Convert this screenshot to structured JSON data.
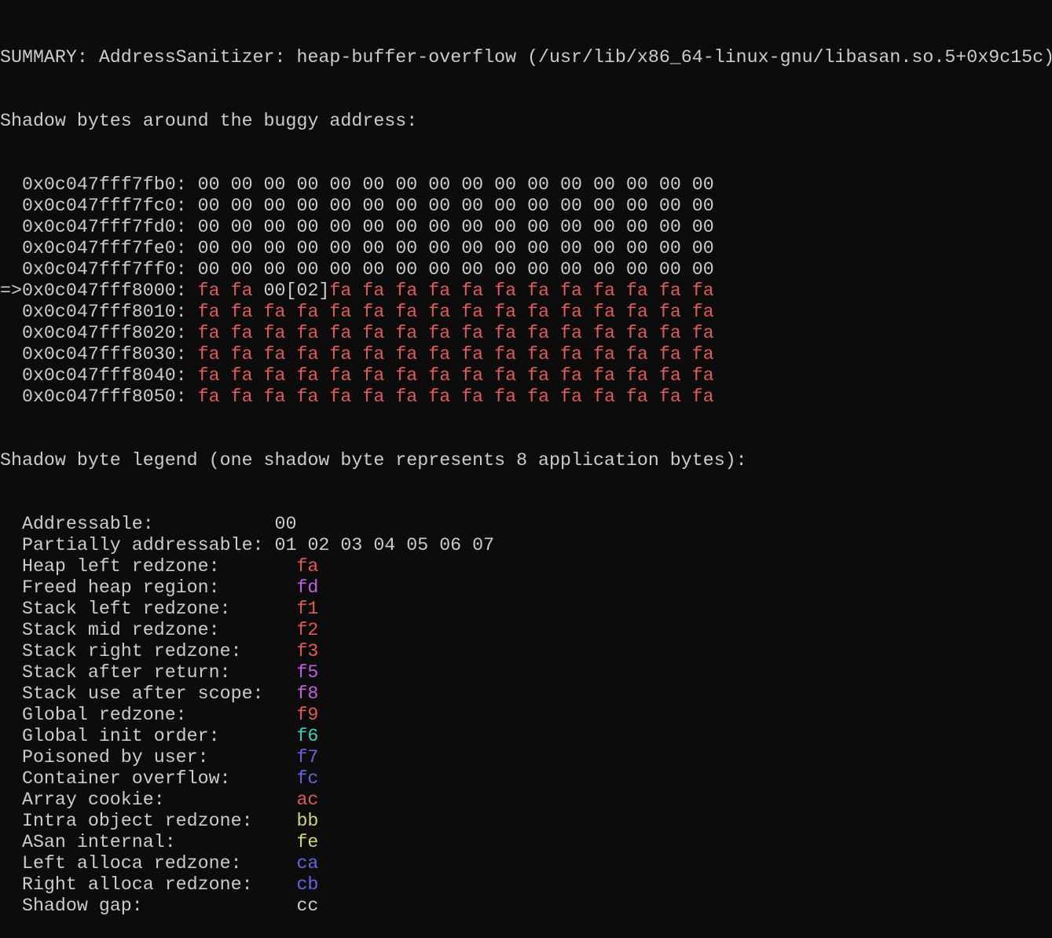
{
  "terminal": {
    "summary": "SUMMARY: AddressSanitizer: heap-buffer-overflow (/usr/lib/x86_64-linux-gnu/libasan.so.5+0x9c15c)",
    "shadow_header": "Shadow bytes around the buggy address:",
    "colors": {
      "fg": "#cccccc",
      "red": "#e05a5a",
      "magenta": "#c060e0",
      "cyan": "#3ad0b8",
      "blue": "#6464e0",
      "yellow": "#d4d470",
      "gray": "#cccccc"
    },
    "rows": [
      {
        "prefix": "  ",
        "address": "0x0c047fff7fb0:",
        "segments": [
          {
            "text": " 00 00 00 00 00 00 00 00 00 00 00 00 00 00 00 00",
            "color": "fg"
          }
        ]
      },
      {
        "prefix": "  ",
        "address": "0x0c047fff7fc0:",
        "segments": [
          {
            "text": " 00 00 00 00 00 00 00 00 00 00 00 00 00 00 00 00",
            "color": "fg"
          }
        ]
      },
      {
        "prefix": "  ",
        "address": "0x0c047fff7fd0:",
        "segments": [
          {
            "text": " 00 00 00 00 00 00 00 00 00 00 00 00 00 00 00 00",
            "color": "fg"
          }
        ]
      },
      {
        "prefix": "  ",
        "address": "0x0c047fff7fe0:",
        "segments": [
          {
            "text": " 00 00 00 00 00 00 00 00 00 00 00 00 00 00 00 00",
            "color": "fg"
          }
        ]
      },
      {
        "prefix": "  ",
        "address": "0x0c047fff7ff0:",
        "segments": [
          {
            "text": " 00 00 00 00 00 00 00 00 00 00 00 00 00 00 00 00",
            "color": "fg"
          }
        ]
      },
      {
        "prefix": "=>",
        "address": "0x0c047fff8000:",
        "segments": [
          {
            "text": " ",
            "color": "fg"
          },
          {
            "text": "fa fa",
            "color": "red"
          },
          {
            "text": " 00[02]",
            "color": "fg"
          },
          {
            "text": "fa fa fa fa fa fa fa fa fa fa fa fa",
            "color": "red"
          }
        ]
      },
      {
        "prefix": "  ",
        "address": "0x0c047fff8010:",
        "segments": [
          {
            "text": " ",
            "color": "fg"
          },
          {
            "text": "fa fa fa fa fa fa fa fa fa fa fa fa fa fa fa fa",
            "color": "red"
          }
        ]
      },
      {
        "prefix": "  ",
        "address": "0x0c047fff8020:",
        "segments": [
          {
            "text": " ",
            "color": "fg"
          },
          {
            "text": "fa fa fa fa fa fa fa fa fa fa fa fa fa fa fa fa",
            "color": "red"
          }
        ]
      },
      {
        "prefix": "  ",
        "address": "0x0c047fff8030:",
        "segments": [
          {
            "text": " ",
            "color": "fg"
          },
          {
            "text": "fa fa fa fa fa fa fa fa fa fa fa fa fa fa fa fa",
            "color": "red"
          }
        ]
      },
      {
        "prefix": "  ",
        "address": "0x0c047fff8040:",
        "segments": [
          {
            "text": " ",
            "color": "fg"
          },
          {
            "text": "fa fa fa fa fa fa fa fa fa fa fa fa fa fa fa fa",
            "color": "red"
          }
        ]
      },
      {
        "prefix": "  ",
        "address": "0x0c047fff8050:",
        "segments": [
          {
            "text": " ",
            "color": "fg"
          },
          {
            "text": "fa fa fa fa fa fa fa fa fa fa fa fa fa fa fa fa",
            "color": "red"
          }
        ]
      }
    ],
    "legend_header": "Shadow byte legend (one shadow byte represents 8 application bytes):",
    "legend": [
      {
        "label": "  Addressable:",
        "value": "00",
        "color": "fg",
        "pad": false
      },
      {
        "label": "  Partially addressable:",
        "value": "01 02 03 04 05 06 07",
        "color": "fg",
        "pad": false
      },
      {
        "label": "  Heap left redzone:",
        "value": "fa",
        "color": "red",
        "pad": true
      },
      {
        "label": "  Freed heap region:",
        "value": "fd",
        "color": "magenta",
        "pad": true
      },
      {
        "label": "  Stack left redzone:",
        "value": "f1",
        "color": "red",
        "pad": true
      },
      {
        "label": "  Stack mid redzone:",
        "value": "f2",
        "color": "red",
        "pad": true
      },
      {
        "label": "  Stack right redzone:",
        "value": "f3",
        "color": "red",
        "pad": true
      },
      {
        "label": "  Stack after return:",
        "value": "f5",
        "color": "magenta",
        "pad": true
      },
      {
        "label": "  Stack use after scope:",
        "value": "f8",
        "color": "magenta",
        "pad": true
      },
      {
        "label": "  Global redzone:",
        "value": "f9",
        "color": "red",
        "pad": true
      },
      {
        "label": "  Global init order:",
        "value": "f6",
        "color": "cyan",
        "pad": true
      },
      {
        "label": "  Poisoned by user:",
        "value": "f7",
        "color": "blue",
        "pad": true
      },
      {
        "label": "  Container overflow:",
        "value": "fc",
        "color": "blue",
        "pad": true
      },
      {
        "label": "  Array cookie:",
        "value": "ac",
        "color": "red",
        "pad": true
      },
      {
        "label": "  Intra object redzone:",
        "value": "bb",
        "color": "yellow",
        "pad": true
      },
      {
        "label": "  ASan internal:",
        "value": "fe",
        "color": "yellow",
        "pad": true
      },
      {
        "label": "  Left alloca redzone:",
        "value": "ca",
        "color": "blue",
        "pad": true
      },
      {
        "label": "  Right alloca redzone:",
        "value": "cb",
        "color": "blue",
        "pad": true
      },
      {
        "label": "  Shadow gap:",
        "value": "cc",
        "color": "gray",
        "pad": true
      }
    ]
  }
}
